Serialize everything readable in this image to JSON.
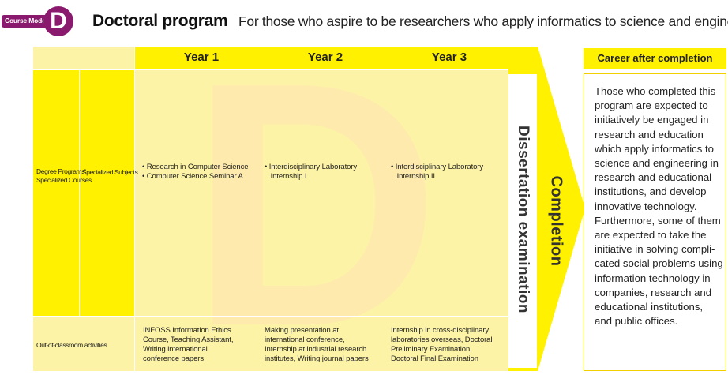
{
  "header": {
    "badge_label": "Course Model",
    "badge_letter": "D",
    "title": "Doctoral program",
    "subtitle": "For those who aspire to be researchers who apply informatics to science and engineering"
  },
  "table": {
    "years": [
      "Year 1",
      "Year 2",
      "Year 3"
    ],
    "row_labels": {
      "degree_programs": [
        "Degree Programs'",
        "Specialized Courses"
      ],
      "specialized_subjects": "Specialized Subjects",
      "out_of_classroom": "Out-of-classroom activities"
    },
    "watermark_letter": "D",
    "specialized": {
      "year1": [
        "• Research in Computer Science",
        "• Computer Science Seminar A"
      ],
      "year2": [
        "• Interdisciplinary Laboratory",
        "   Internship I"
      ],
      "year3": [
        "• Interdisciplinary Laboratory",
        "   Internship II"
      ]
    },
    "activities": {
      "year1": [
        "INFOSS Information Ethics",
        "Course, Teaching Assistant,",
        "Writing international",
        "conference papers"
      ],
      "year2": [
        "Making presentation at",
        "international conference,",
        "Internship at industrial research",
        "institutes, Writing journal papers"
      ],
      "year3": [
        "Internship in cross-disciplinary",
        "laboratories overseas, Doctoral",
        "Preliminary Examination,",
        "Doctoral Final Examination"
      ]
    },
    "dissertation": "Dissertation examination",
    "completion": "Completion"
  },
  "career": {
    "heading": "Career after completion",
    "lines": [
      "Those who completed this",
      "program are expected to",
      "initiatively be engaged in",
      "research and education",
      "which apply informatics to",
      "science and engineering in",
      "research and educational",
      "institutions, and develop",
      "innovative technology.",
      "Furthermore, some of them",
      "are expected to take the",
      "initiative in solving compli-",
      "cated social problems using",
      "information technology in",
      "companies, research and",
      "educational institutions,",
      "and public offices."
    ]
  },
  "colors": {
    "accent_purple": "#8a1a6e",
    "yellow": "#fff100",
    "pale_yellow": "#fcf3a6"
  }
}
